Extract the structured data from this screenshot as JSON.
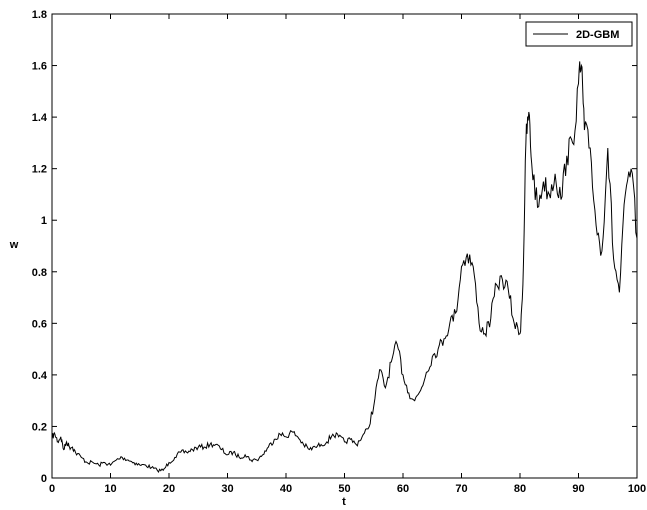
{
  "chart_data": {
    "type": "line",
    "title": "",
    "xlabel": "t",
    "ylabel": "w",
    "xlim": [
      0,
      100
    ],
    "ylim": [
      0,
      1.8
    ],
    "xticks": [
      0,
      10,
      20,
      30,
      40,
      50,
      60,
      70,
      80,
      90,
      100
    ],
    "yticks": [
      0,
      0.2,
      0.4,
      0.6,
      0.8,
      1,
      1.2,
      1.4,
      1.6,
      1.8
    ],
    "xtick_labels": [
      "0",
      "10",
      "20",
      "30",
      "40",
      "50",
      "60",
      "70",
      "80",
      "90",
      "100"
    ],
    "ytick_labels": [
      "0",
      "0.2",
      "0.4",
      "0.6",
      "0.8",
      "1",
      "1.2",
      "1.4",
      "1.6",
      "1.8"
    ],
    "grid": false,
    "legend_position": "top-right",
    "series": [
      {
        "name": "2D-GBM",
        "color": "#000000",
        "x": [
          0,
          0.5,
          1,
          1.5,
          2,
          2.5,
          3,
          3.5,
          4,
          5,
          6,
          7,
          8,
          9,
          10,
          11,
          12,
          13,
          14,
          15,
          16,
          17,
          18,
          19,
          20,
          21,
          22,
          23,
          24,
          25,
          26,
          27,
          28,
          29,
          30,
          31,
          32,
          33,
          34,
          35,
          36,
          37,
          38,
          39,
          40,
          41,
          42,
          43,
          44,
          45,
          46,
          47,
          48,
          49,
          50,
          51,
          52,
          53,
          54,
          55,
          56,
          57,
          58,
          59,
          60,
          61,
          62,
          63,
          64,
          65,
          66,
          67,
          68,
          69,
          70,
          71,
          72,
          73,
          74,
          75,
          76,
          77,
          78,
          79,
          80,
          80.5,
          81,
          81.5,
          82,
          83,
          84,
          85,
          86,
          87,
          88,
          89,
          90,
          90.5,
          91,
          92,
          93,
          94,
          95,
          96,
          97,
          98,
          99,
          100
        ],
        "values": [
          0.16,
          0.17,
          0.14,
          0.16,
          0.11,
          0.14,
          0.12,
          0.12,
          0.1,
          0.08,
          0.06,
          0.06,
          0.05,
          0.06,
          0.05,
          0.07,
          0.08,
          0.07,
          0.06,
          0.05,
          0.05,
          0.04,
          0.03,
          0.03,
          0.06,
          0.08,
          0.1,
          0.1,
          0.11,
          0.12,
          0.12,
          0.13,
          0.13,
          0.11,
          0.09,
          0.1,
          0.08,
          0.09,
          0.07,
          0.07,
          0.09,
          0.12,
          0.15,
          0.17,
          0.16,
          0.18,
          0.16,
          0.13,
          0.11,
          0.12,
          0.13,
          0.14,
          0.17,
          0.16,
          0.14,
          0.15,
          0.13,
          0.16,
          0.19,
          0.28,
          0.42,
          0.35,
          0.45,
          0.52,
          0.4,
          0.33,
          0.3,
          0.34,
          0.41,
          0.47,
          0.5,
          0.54,
          0.6,
          0.64,
          0.82,
          0.87,
          0.82,
          0.6,
          0.56,
          0.62,
          0.75,
          0.77,
          0.73,
          0.6,
          0.56,
          0.75,
          1.3,
          1.42,
          1.22,
          1.05,
          1.15,
          1.1,
          1.18,
          1.08,
          1.25,
          1.3,
          1.53,
          1.6,
          1.35,
          1.28,
          0.98,
          0.88,
          1.28,
          0.85,
          0.72,
          1.1,
          1.2,
          0.93
        ]
      }
    ]
  }
}
